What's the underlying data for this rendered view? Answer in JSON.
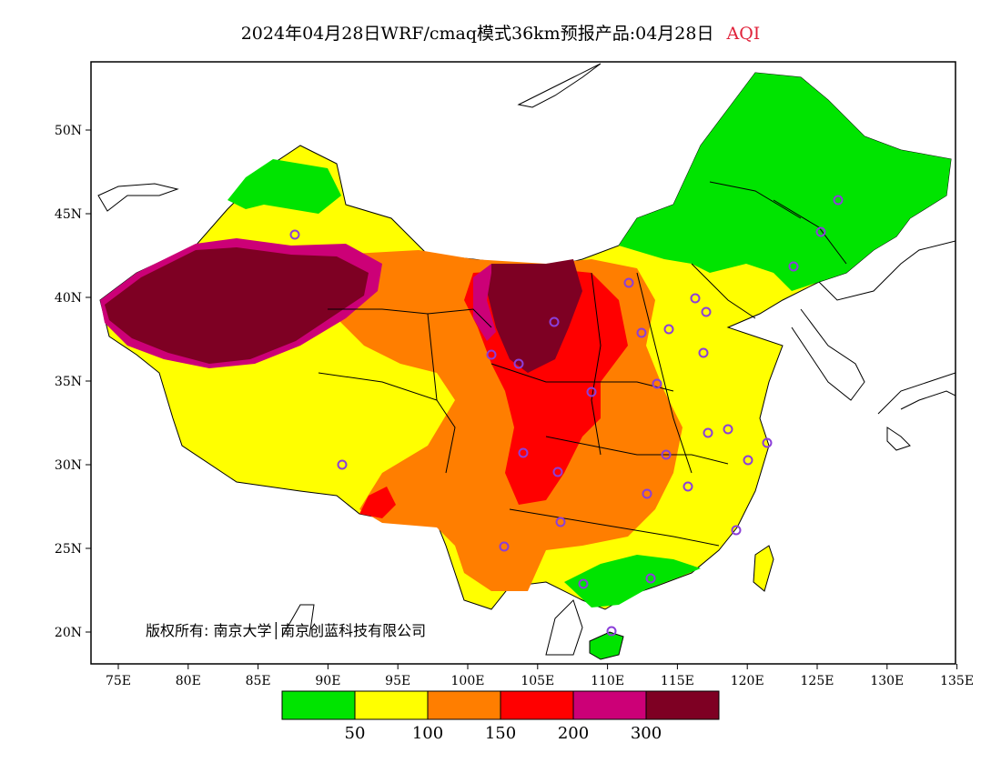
{
  "title": {
    "main": "2024年04月28日WRF/cmaq模式36km预报产品:04月28日",
    "variable": "AQI",
    "variable_color": "#e0223a"
  },
  "map": {
    "lon_ticks": [
      "75E",
      "80E",
      "85E",
      "90E",
      "95E",
      "100E",
      "105E",
      "110E",
      "115E",
      "120E",
      "125E",
      "130E",
      "135E"
    ],
    "lat_ticks": [
      "50N",
      "45N",
      "40N",
      "35N",
      "30N",
      "25N",
      "20N"
    ]
  },
  "copyright": "版权所有: 南京大学│南京创蓝科技有限公司",
  "legend": {
    "colors": [
      "#00e400",
      "#ffff00",
      "#ff7e00",
      "#ff0000",
      "#cc0077",
      "#7e0023"
    ],
    "labels": [
      "50",
      "100",
      "150",
      "200",
      "300"
    ]
  },
  "stations": {
    "marker": "circle-marker",
    "color": "#8b3fd9"
  }
}
